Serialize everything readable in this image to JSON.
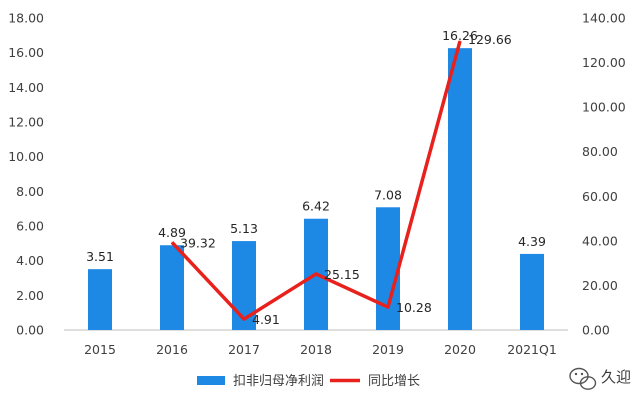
{
  "colors": {
    "bar": "#1e88e5",
    "line": "#e8211c",
    "axis": "#bfbfbf",
    "text": "#404040"
  },
  "chart_data": {
    "type": "bar",
    "categories": [
      "2015",
      "2016",
      "2017",
      "2018",
      "2019",
      "2020",
      "2021Q1"
    ],
    "series": [
      {
        "name": "扣非归母净利润",
        "type": "bar",
        "axis": "left",
        "values": [
          3.51,
          4.89,
          5.13,
          6.42,
          7.08,
          16.26,
          4.39
        ],
        "labels": [
          "3.51",
          "4.89",
          "5.13",
          "6.42",
          "7.08",
          "16.26",
          "4.39"
        ]
      },
      {
        "name": "同比增长",
        "type": "line",
        "axis": "right",
        "values": [
          null,
          39.32,
          4.91,
          25.15,
          10.28,
          129.66,
          null
        ],
        "labels": [
          "",
          "39.32",
          "4.91",
          "25.15",
          "10.28",
          "129.66",
          ""
        ]
      }
    ],
    "y_left": {
      "range": [
        0,
        18
      ],
      "ticks": [
        "0.00",
        "2.00",
        "4.00",
        "6.00",
        "8.00",
        "10.00",
        "12.00",
        "14.00",
        "16.00",
        "18.00"
      ]
    },
    "y_right": {
      "range": [
        0,
        140
      ],
      "ticks": [
        "0.00",
        "20.00",
        "40.00",
        "60.00",
        "80.00",
        "100.00",
        "120.00",
        "140.00"
      ]
    },
    "grid": false,
    "legend_position": "bottom-center"
  },
  "watermark": {
    "icon": "wechat-icon",
    "text": "久迎"
  }
}
